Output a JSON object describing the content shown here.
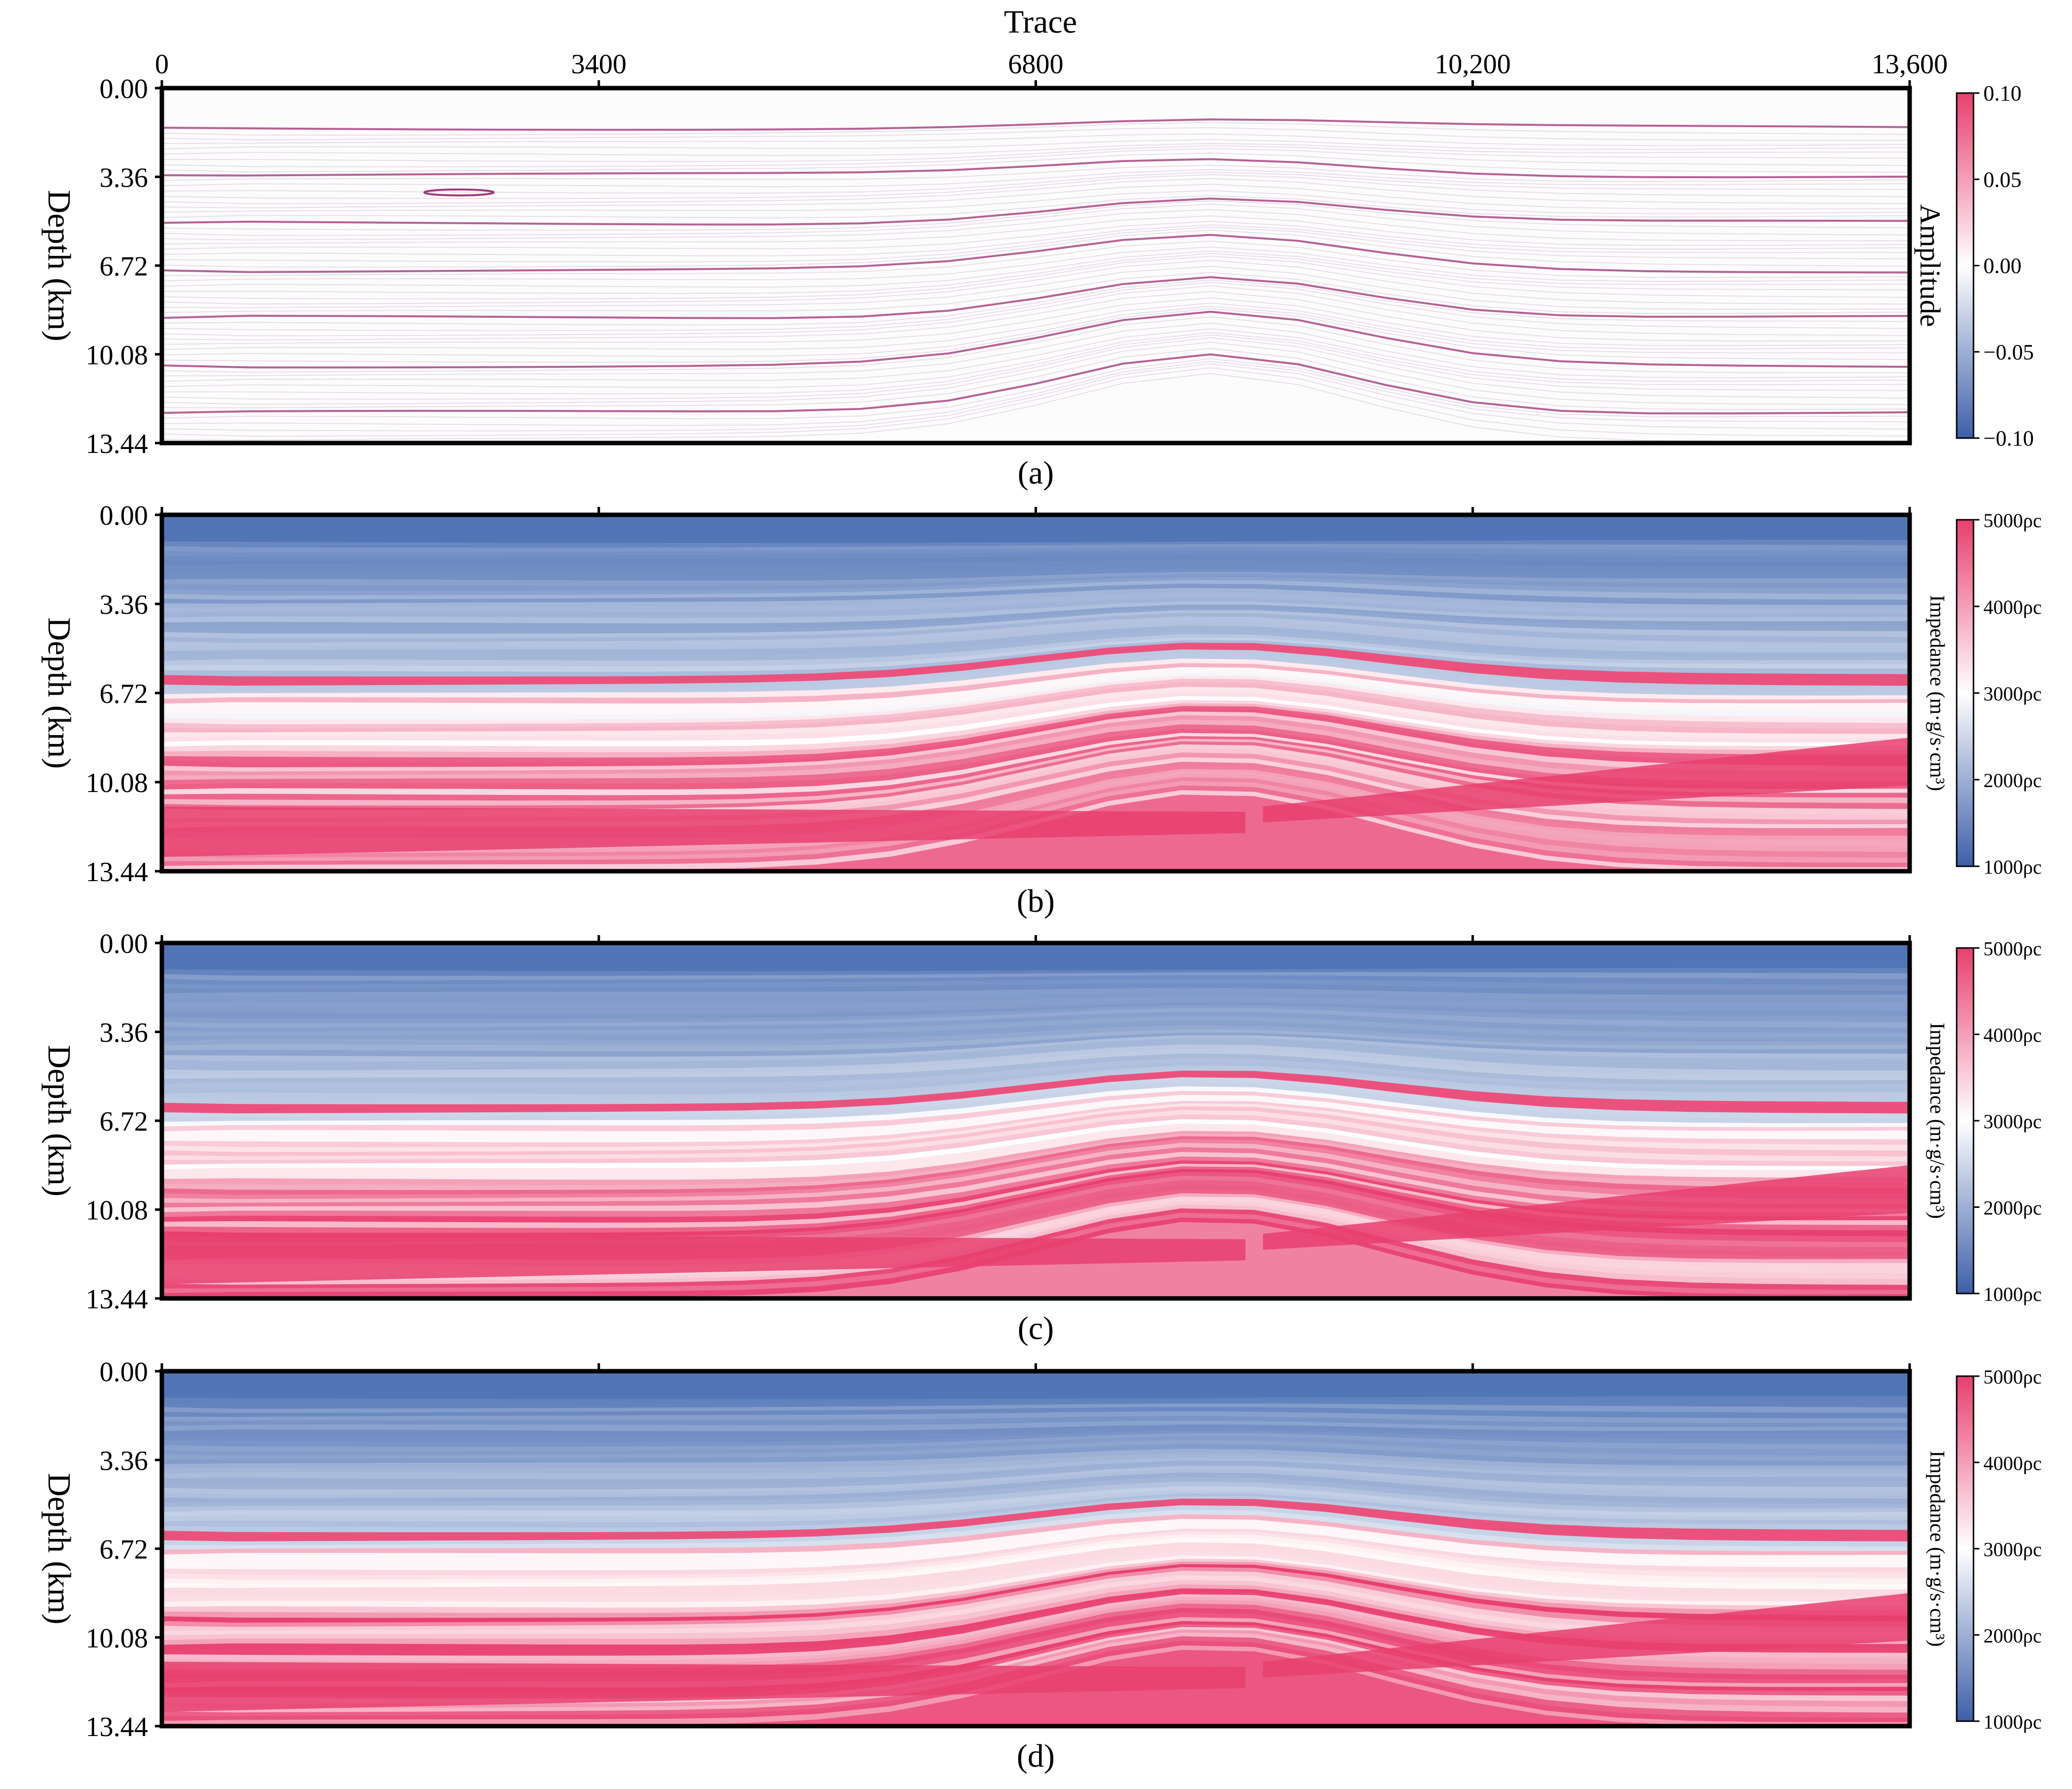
{
  "figure": {
    "top_axis_title": "Trace",
    "colors": {
      "blue_low": "#4a6fb3",
      "mid": "#ffffff",
      "pink_high": "#e83f6f",
      "reflector": "#a23a7a",
      "frame": "#000000"
    }
  },
  "chart_data": [
    {
      "type": "heatmap",
      "panel_label": "(a)",
      "xlabel": "Trace",
      "ylabel": "Depth (km)",
      "xlim": [
        0,
        13600
      ],
      "ylim": [
        0,
        13.44
      ],
      "x_ticks": [
        0,
        3400,
        6800,
        10200,
        13600
      ],
      "x_tick_labels": [
        "0",
        "3400",
        "6800",
        "10,200",
        "13,600"
      ],
      "y_ticks": [
        0,
        3.36,
        6.72,
        10.08,
        13.44
      ],
      "y_tick_labels": [
        "0.00",
        "3.36",
        "6.72",
        "10.08",
        "13.44"
      ],
      "colorbar": {
        "label": "Amplitude",
        "range": [
          -0.1,
          0.1
        ],
        "ticks": [
          0.1,
          0.05,
          0.0,
          -0.05,
          -0.1
        ],
        "tick_labels": [
          "0.10",
          "0.05",
          "0.00",
          "−0.05",
          "−0.10"
        ]
      },
      "colormap": [
        "#3d5fa8",
        "#ffffff",
        "#e83f6f"
      ]
    },
    {
      "type": "heatmap",
      "panel_label": "(b)",
      "ylabel": "Depth (km)",
      "xlim": [
        0,
        13600
      ],
      "ylim": [
        0,
        13.44
      ],
      "x_ticks": [
        0,
        3400,
        6800,
        10200,
        13600
      ],
      "y_ticks": [
        0,
        3.36,
        6.72,
        10.08,
        13.44
      ],
      "y_tick_labels": [
        "0.00",
        "3.36",
        "6.72",
        "10.08",
        "13.44"
      ],
      "colorbar": {
        "label": "Impedance (m·g/s·cm³)",
        "range": [
          1000,
          5000
        ],
        "ticks": [
          5000,
          4000,
          3000,
          2000,
          1000
        ],
        "tick_labels": [
          "5000ρc",
          "4000ρc",
          "3000ρc",
          "2000ρc",
          "1000ρc"
        ]
      },
      "colormap": [
        "#3d5fa8",
        "#ffffff",
        "#e83f6f"
      ]
    },
    {
      "type": "heatmap",
      "panel_label": "(c)",
      "ylabel": "Depth (km)",
      "xlim": [
        0,
        13600
      ],
      "ylim": [
        0,
        13.44
      ],
      "x_ticks": [
        0,
        3400,
        6800,
        10200,
        13600
      ],
      "y_ticks": [
        0,
        3.36,
        6.72,
        10.08,
        13.44
      ],
      "y_tick_labels": [
        "0.00",
        "3.36",
        "6.72",
        "10.08",
        "13.44"
      ],
      "colorbar": {
        "label": "Impedance (m·g/s·cm³)",
        "range": [
          1000,
          5000
        ],
        "ticks": [
          5000,
          4000,
          3000,
          2000,
          1000
        ],
        "tick_labels": [
          "5000ρc",
          "4000ρc",
          "3000ρc",
          "2000ρc",
          "1000ρc"
        ]
      },
      "colormap": [
        "#3d5fa8",
        "#ffffff",
        "#e83f6f"
      ]
    },
    {
      "type": "heatmap",
      "panel_label": "(d)",
      "ylabel": "Depth (km)",
      "xlim": [
        0,
        13600
      ],
      "ylim": [
        0,
        13.44
      ],
      "x_ticks": [
        0,
        3400,
        6800,
        10200,
        13600
      ],
      "y_ticks": [
        0,
        3.36,
        6.72,
        10.08,
        13.44
      ],
      "y_tick_labels": [
        "0.00",
        "3.36",
        "6.72",
        "10.08",
        "13.44"
      ],
      "colorbar": {
        "label": "Impedance (m·g/s·cm³)",
        "range": [
          1000,
          5000
        ],
        "ticks": [
          5000,
          4000,
          3000,
          2000,
          1000
        ],
        "tick_labels": [
          "5000ρc",
          "4000ρc",
          "3000ρc",
          "2000ρc",
          "1000ρc"
        ]
      },
      "colormap": [
        "#3d5fa8",
        "#ffffff",
        "#e83f6f"
      ]
    }
  ]
}
